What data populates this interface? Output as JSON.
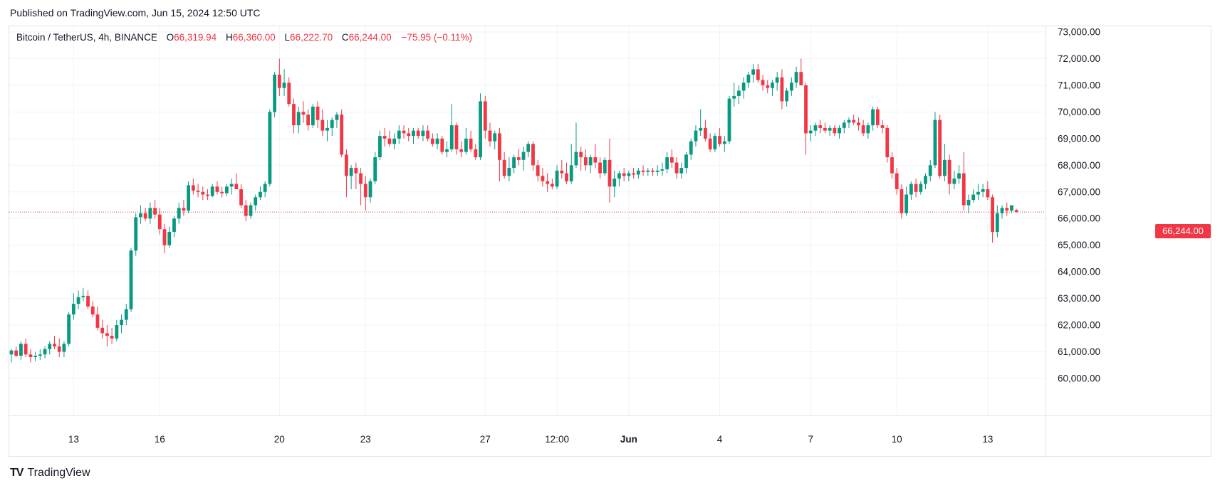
{
  "header": {
    "published": "Published on TradingView.com, Jun 15, 2024 12:50 UTC"
  },
  "legend": {
    "symbol": "Bitcoin / TetherUS, 4h, BINANCE",
    "open_label": "O",
    "open": "66,319.94",
    "high_label": "H",
    "high": "66,360.00",
    "low_label": "L",
    "low": "66,222.70",
    "close_label": "C",
    "close": "66,244.00",
    "change": "−75.95 (−0.11%)"
  },
  "price_tag": "66,244.00",
  "brand": "TradingView",
  "colors": {
    "up": "#089981",
    "down": "#f23645",
    "grid": "#f0f3fa",
    "text": "#131722"
  },
  "chart_data": {
    "type": "candlestick",
    "y_ticks": [
      "60,000.00",
      "61,000.00",
      "62,000.00",
      "63,000.00",
      "64,000.00",
      "65,000.00",
      "66,000.00",
      "67,000.00",
      "68,000.00",
      "69,000.00",
      "70,000.00",
      "71,000.00",
      "72,000.00",
      "73,000.00"
    ],
    "ylim": [
      59000,
      73500
    ],
    "x_ticks": [
      {
        "label": "13",
        "bar": 13,
        "bold": false
      },
      {
        "label": "16",
        "bar": 31,
        "bold": false
      },
      {
        "label": "20",
        "bar": 56,
        "bold": false
      },
      {
        "label": "23",
        "bar": 74,
        "bold": false
      },
      {
        "label": "27",
        "bar": 99,
        "bold": false
      },
      {
        "label": "12:00",
        "bar": 114,
        "bold": false
      },
      {
        "label": "Jun",
        "bar": 129,
        "bold": true
      },
      {
        "label": "4",
        "bar": 148,
        "bold": false
      },
      {
        "label": "7",
        "bar": 167,
        "bold": false
      },
      {
        "label": "10",
        "bar": 185,
        "bold": false
      },
      {
        "label": "13",
        "bar": 204,
        "bold": false
      }
    ],
    "last_price": 66244,
    "candles": [
      [
        60900,
        61100,
        60600,
        61050
      ],
      [
        61050,
        61200,
        60800,
        60850
      ],
      [
        60850,
        61400,
        60700,
        61300
      ],
      [
        61300,
        61500,
        60800,
        60900
      ],
      [
        60900,
        61100,
        60600,
        60800
      ],
      [
        60800,
        61000,
        60650,
        60850
      ],
      [
        60850,
        61100,
        60700,
        60900
      ],
      [
        60900,
        61200,
        60750,
        61100
      ],
      [
        61100,
        61400,
        60900,
        61300
      ],
      [
        61300,
        61600,
        61100,
        61200
      ],
      [
        61200,
        61500,
        60800,
        61000
      ],
      [
        61000,
        61400,
        60800,
        61300
      ],
      [
        61300,
        62500,
        61200,
        62400
      ],
      [
        62400,
        63200,
        62200,
        62800
      ],
      [
        62800,
        63300,
        62600,
        63050
      ],
      [
        63050,
        63400,
        62900,
        63100
      ],
      [
        63100,
        63300,
        62600,
        62700
      ],
      [
        62700,
        62900,
        62300,
        62400
      ],
      [
        62400,
        62700,
        61800,
        61900
      ],
      [
        61900,
        62200,
        61500,
        61700
      ],
      [
        61700,
        62000,
        61200,
        61600
      ],
      [
        61600,
        61900,
        61300,
        61500
      ],
      [
        61500,
        62200,
        61400,
        62000
      ],
      [
        62000,
        62400,
        61700,
        62200
      ],
      [
        62200,
        62800,
        62000,
        62600
      ],
      [
        62600,
        64900,
        62500,
        64800
      ],
      [
        64800,
        66200,
        64600,
        66050
      ],
      [
        66050,
        66500,
        65800,
        66200
      ],
      [
        66200,
        66400,
        65900,
        66000
      ],
      [
        66000,
        66600,
        65800,
        66400
      ],
      [
        66400,
        66700,
        66000,
        66150
      ],
      [
        66150,
        66400,
        65400,
        65600
      ],
      [
        65600,
        65800,
        64700,
        65000
      ],
      [
        65000,
        65700,
        64900,
        65500
      ],
      [
        65500,
        66100,
        65300,
        66000
      ],
      [
        66000,
        66600,
        65800,
        66400
      ],
      [
        66400,
        66700,
        66100,
        66300
      ],
      [
        66300,
        67400,
        66200,
        67250
      ],
      [
        67250,
        67500,
        66900,
        67050
      ],
      [
        67050,
        67300,
        66800,
        67000
      ],
      [
        67000,
        67200,
        66700,
        66900
      ],
      [
        66900,
        67100,
        66700,
        66850
      ],
      [
        66850,
        67300,
        66800,
        67200
      ],
      [
        67200,
        67400,
        66900,
        67000
      ],
      [
        67000,
        67200,
        66800,
        66950
      ],
      [
        66950,
        67300,
        66850,
        67200
      ],
      [
        67200,
        67500,
        66900,
        67300
      ],
      [
        67300,
        67700,
        67100,
        67100
      ],
      [
        67100,
        67300,
        66400,
        66500
      ],
      [
        66500,
        66700,
        65900,
        66100
      ],
      [
        66100,
        66600,
        66000,
        66500
      ],
      [
        66500,
        66900,
        66300,
        66800
      ],
      [
        66800,
        67200,
        66700,
        67000
      ],
      [
        67000,
        67400,
        66800,
        67300
      ],
      [
        67300,
        70100,
        67200,
        70000
      ],
      [
        70000,
        71500,
        69800,
        71400
      ],
      [
        71400,
        72000,
        70600,
        70900
      ],
      [
        70900,
        71600,
        70600,
        71100
      ],
      [
        71100,
        71300,
        70200,
        70300
      ],
      [
        70300,
        70500,
        69200,
        69500
      ],
      [
        69500,
        70200,
        69200,
        70000
      ],
      [
        70000,
        70400,
        69600,
        69900
      ],
      [
        69900,
        70100,
        69300,
        69500
      ],
      [
        69500,
        70300,
        69400,
        70200
      ],
      [
        70200,
        70400,
        69400,
        69700
      ],
      [
        69700,
        70100,
        69100,
        69300
      ],
      [
        69300,
        69700,
        68900,
        69400
      ],
      [
        69400,
        69800,
        69100,
        69700
      ],
      [
        69700,
        70000,
        69400,
        69900
      ],
      [
        69900,
        70100,
        68300,
        68400
      ],
      [
        68400,
        68600,
        66800,
        67600
      ],
      [
        67600,
        68000,
        67100,
        67900
      ],
      [
        67900,
        68100,
        67100,
        67700
      ],
      [
        67700,
        67900,
        66500,
        67300
      ],
      [
        67300,
        67600,
        66300,
        66800
      ],
      [
        66800,
        67500,
        66600,
        67400
      ],
      [
        67400,
        68500,
        67300,
        68300
      ],
      [
        68300,
        69300,
        68200,
        69100
      ],
      [
        69100,
        69400,
        68700,
        69000
      ],
      [
        69000,
        69300,
        68700,
        68800
      ],
      [
        68800,
        69200,
        68600,
        69000
      ],
      [
        69000,
        69500,
        68800,
        69300
      ],
      [
        69300,
        69500,
        69000,
        69200
      ],
      [
        69200,
        69400,
        68900,
        69100
      ],
      [
        69100,
        69400,
        68800,
        69300
      ],
      [
        69300,
        69400,
        69000,
        69100
      ],
      [
        69100,
        69500,
        68900,
        69300
      ],
      [
        69300,
        69500,
        68900,
        69000
      ],
      [
        69000,
        69200,
        68700,
        68800
      ],
      [
        68800,
        69200,
        68600,
        69000
      ],
      [
        69000,
        69100,
        68400,
        68500
      ],
      [
        68500,
        68900,
        68300,
        68600
      ],
      [
        68600,
        70300,
        68500,
        69500
      ],
      [
        69500,
        69600,
        68400,
        68600
      ],
      [
        68600,
        68900,
        68300,
        68500
      ],
      [
        68500,
        69400,
        68400,
        69000
      ],
      [
        69000,
        69300,
        68500,
        68600
      ],
      [
        68600,
        68800,
        68200,
        68300
      ],
      [
        68300,
        70700,
        68200,
        70400
      ],
      [
        70400,
        70600,
        69000,
        69300
      ],
      [
        69300,
        69600,
        68700,
        68900
      ],
      [
        68900,
        69300,
        68600,
        69200
      ],
      [
        69200,
        69400,
        67400,
        68200
      ],
      [
        68200,
        68500,
        67500,
        67600
      ],
      [
        67600,
        68300,
        67400,
        67900
      ],
      [
        67900,
        68400,
        67700,
        68300
      ],
      [
        68300,
        68600,
        68000,
        68200
      ],
      [
        68200,
        68700,
        67800,
        68500
      ],
      [
        68500,
        68900,
        68300,
        68800
      ],
      [
        68800,
        68900,
        67800,
        68000
      ],
      [
        68000,
        68200,
        67400,
        67600
      ],
      [
        67600,
        67900,
        67200,
        67400
      ],
      [
        67400,
        67700,
        67000,
        67300
      ],
      [
        67300,
        67500,
        67100,
        67200
      ],
      [
        67200,
        68000,
        67100,
        67800
      ],
      [
        67800,
        68200,
        67500,
        67700
      ],
      [
        67700,
        68100,
        67300,
        67400
      ],
      [
        67400,
        68800,
        67300,
        68000
      ],
      [
        68000,
        69600,
        67900,
        68500
      ],
      [
        68500,
        68700,
        67800,
        68300
      ],
      [
        68300,
        68600,
        67800,
        68000
      ],
      [
        68000,
        68400,
        67700,
        68300
      ],
      [
        68300,
        68800,
        67900,
        68100
      ],
      [
        68100,
        68300,
        67500,
        67700
      ],
      [
        67700,
        68300,
        67600,
        68200
      ],
      [
        68200,
        69000,
        66600,
        67200
      ],
      [
        67200,
        67800,
        66800,
        67500
      ],
      [
        67500,
        67800,
        67200,
        67700
      ],
      [
        67700,
        67900,
        67400,
        67600
      ],
      [
        67600,
        67800,
        67400,
        67700
      ],
      [
        67700,
        67900,
        67500,
        67650
      ],
      [
        67650,
        67900,
        67500,
        67800
      ],
      [
        67800,
        68000,
        67600,
        67750
      ],
      [
        67750,
        67900,
        67600,
        67800
      ],
      [
        67800,
        67900,
        67600,
        67750
      ],
      [
        67750,
        68000,
        67600,
        67800
      ],
      [
        67800,
        68100,
        67600,
        67850
      ],
      [
        67850,
        68500,
        67700,
        68300
      ],
      [
        68300,
        68600,
        67900,
        68100
      ],
      [
        68100,
        68300,
        67500,
        67700
      ],
      [
        67700,
        68100,
        67500,
        67900
      ],
      [
        67900,
        68500,
        67700,
        68400
      ],
      [
        68400,
        69000,
        68200,
        68900
      ],
      [
        68900,
        69500,
        68700,
        69300
      ],
      [
        69300,
        70100,
        69100,
        69400
      ],
      [
        69400,
        69700,
        68900,
        69000
      ],
      [
        69000,
        69200,
        68500,
        68600
      ],
      [
        68600,
        69200,
        68500,
        69100
      ],
      [
        69100,
        69400,
        68700,
        68800
      ],
      [
        68800,
        69100,
        68500,
        68900
      ],
      [
        68900,
        70600,
        68800,
        70500
      ],
      [
        70500,
        71100,
        70200,
        70600
      ],
      [
        70600,
        71000,
        70300,
        70800
      ],
      [
        70800,
        71300,
        70500,
        71100
      ],
      [
        71100,
        71500,
        70900,
        71400
      ],
      [
        71400,
        71800,
        71100,
        71600
      ],
      [
        71600,
        71800,
        71100,
        71200
      ],
      [
        71200,
        71400,
        70800,
        71000
      ],
      [
        71000,
        71200,
        70700,
        70900
      ],
      [
        70900,
        71200,
        70600,
        71100
      ],
      [
        71100,
        71500,
        70800,
        71300
      ],
      [
        71300,
        71600,
        70100,
        70400
      ],
      [
        70400,
        70900,
        70200,
        70800
      ],
      [
        70800,
        71300,
        70600,
        71100
      ],
      [
        71100,
        71700,
        70900,
        71500
      ],
      [
        71500,
        72000,
        71100,
        71000
      ],
      [
        71000,
        71100,
        68400,
        69200
      ],
      [
        69200,
        69500,
        68900,
        69300
      ],
      [
        69300,
        69600,
        69100,
        69500
      ],
      [
        69500,
        69700,
        69200,
        69400
      ],
      [
        69400,
        69600,
        69200,
        69300
      ],
      [
        69300,
        69500,
        69100,
        69400
      ],
      [
        69400,
        69500,
        69100,
        69200
      ],
      [
        69200,
        69500,
        69000,
        69400
      ],
      [
        69400,
        69700,
        69200,
        69600
      ],
      [
        69600,
        69800,
        69400,
        69700
      ],
      [
        69700,
        69900,
        69500,
        69600
      ],
      [
        69600,
        69800,
        69300,
        69500
      ],
      [
        69500,
        69700,
        69100,
        69200
      ],
      [
        69200,
        69600,
        69000,
        69500
      ],
      [
        69500,
        70200,
        69300,
        70100
      ],
      [
        70100,
        70200,
        69400,
        69500
      ],
      [
        69500,
        69700,
        69200,
        69400
      ],
      [
        69400,
        69500,
        68100,
        68300
      ],
      [
        68300,
        68500,
        67500,
        67700
      ],
      [
        67700,
        67900,
        66900,
        67100
      ],
      [
        67100,
        67300,
        66000,
        66200
      ],
      [
        66200,
        67200,
        66100,
        66900
      ],
      [
        66900,
        67400,
        66700,
        67300
      ],
      [
        67300,
        67500,
        66800,
        67000
      ],
      [
        67000,
        67400,
        66900,
        67300
      ],
      [
        67300,
        67700,
        67100,
        67600
      ],
      [
        67600,
        68200,
        67400,
        68000
      ],
      [
        68000,
        70000,
        67900,
        69700
      ],
      [
        69700,
        69900,
        67500,
        67600
      ],
      [
        67600,
        68800,
        67400,
        68200
      ],
      [
        68200,
        68400,
        66900,
        67300
      ],
      [
        67300,
        67800,
        67100,
        67500
      ],
      [
        67500,
        68000,
        67300,
        67700
      ],
      [
        67700,
        68500,
        66300,
        66500
      ],
      [
        66500,
        66900,
        66200,
        66700
      ],
      [
        66700,
        67100,
        66600,
        66900
      ],
      [
        66900,
        67300,
        66700,
        67000
      ],
      [
        67000,
        67300,
        66800,
        67100
      ],
      [
        67100,
        67400,
        66700,
        66800
      ],
      [
        66800,
        66900,
        65100,
        65500
      ],
      [
        65500,
        66500,
        65300,
        66200
      ],
      [
        66200,
        66500,
        66000,
        66400
      ],
      [
        66400,
        66600,
        66100,
        66300
      ],
      [
        66300,
        66500,
        66200,
        66500
      ],
      [
        66320,
        66360,
        66223,
        66244
      ]
    ]
  }
}
